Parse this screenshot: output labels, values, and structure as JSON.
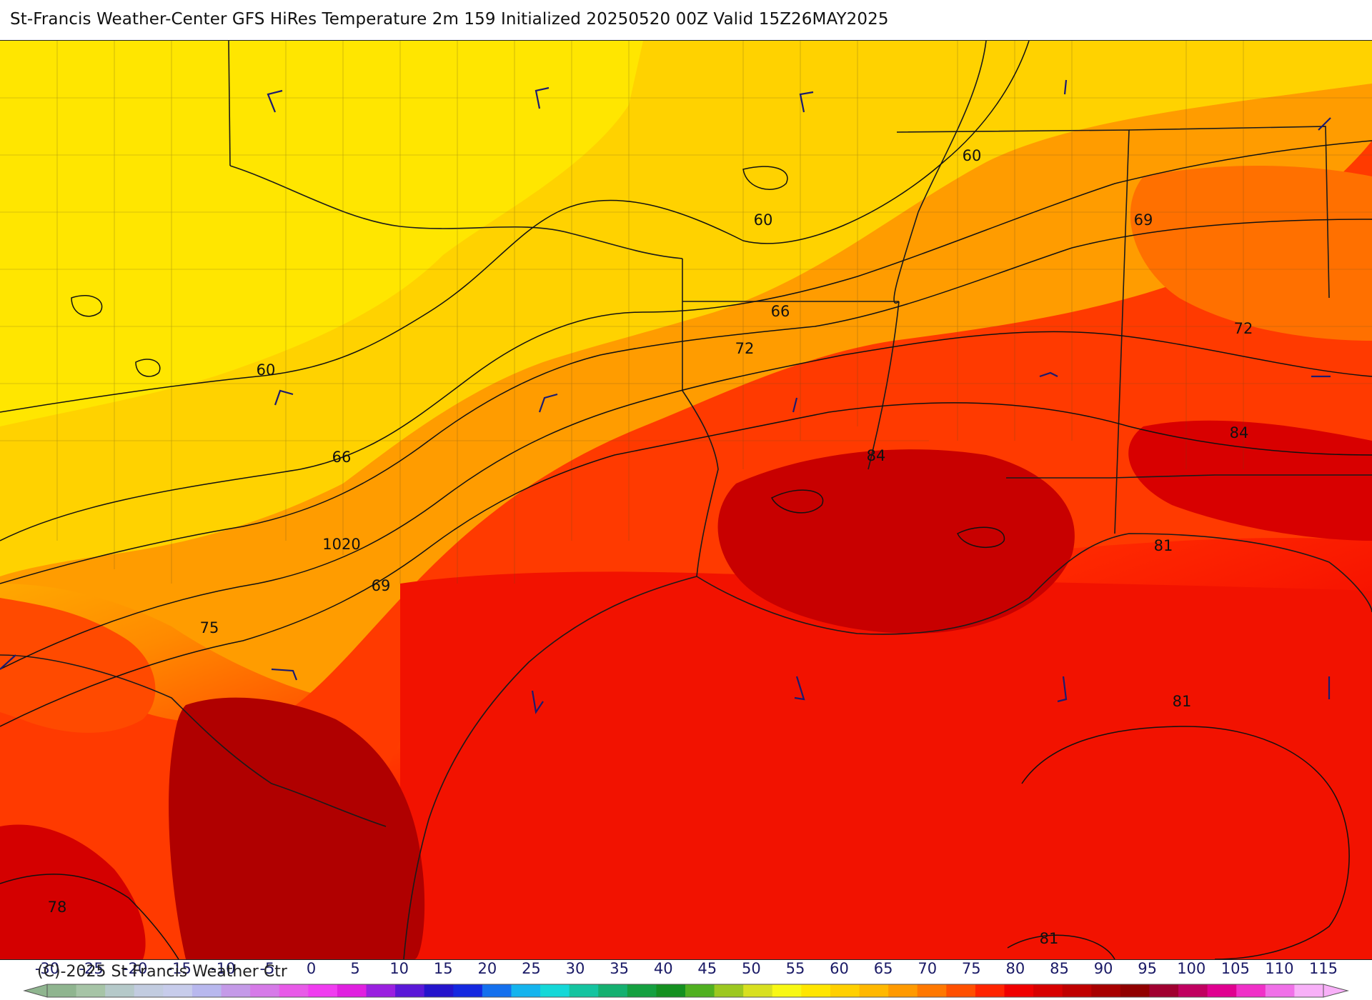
{
  "header": {
    "title": "St-Francis Weather-Center GFS HiRes Temperature 2m  159 Initialized 20250520 00Z Valid 15Z26MAY2025"
  },
  "map": {
    "contour_labels": [
      "60",
      "60",
      "60",
      "66",
      "66",
      "72",
      "72",
      "69",
      "69",
      "1020",
      "75",
      "78",
      "84",
      "84",
      "81",
      "81",
      "81"
    ]
  },
  "colorbar": {
    "tick_labels": [
      "-30",
      "-25",
      "-20",
      "-15",
      "-10",
      "-5",
      "0",
      "5",
      "10",
      "15",
      "20",
      "25",
      "30",
      "35",
      "40",
      "45",
      "50",
      "55",
      "60",
      "65",
      "70",
      "75",
      "80",
      "85",
      "90",
      "95",
      "100",
      "105",
      "110",
      "115"
    ],
    "colors": [
      "#8fb58f",
      "#a6c4a6",
      "#b5c9c9",
      "#c2cce0",
      "#c7cceb",
      "#b8b8ee",
      "#c49ae8",
      "#d67ae8",
      "#e85ae8",
      "#f03cf0",
      "#e020e0",
      "#9a20e0",
      "#5a18d8",
      "#2414cc",
      "#1428e0",
      "#1470ee",
      "#14b4ee",
      "#14d8d8",
      "#14c4a0",
      "#14b070",
      "#14a040",
      "#149020",
      "#50b020",
      "#9cc820",
      "#d8e020",
      "#f8f814",
      "#ffe600",
      "#ffd000",
      "#ffb800",
      "#ff9a00",
      "#ff7800",
      "#ff5000",
      "#ff2400",
      "#f00000",
      "#d80000",
      "#c00000",
      "#a80000",
      "#900000",
      "#a00030",
      "#c00060",
      "#e00090",
      "#f030c8",
      "#f070e8",
      "#f8b0f8"
    ]
  },
  "footer": {
    "copyright": "(C)-2025 St Francis Weather Ctr"
  }
}
